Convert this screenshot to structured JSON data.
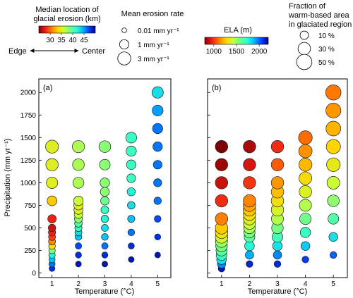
{
  "legends": {
    "median_location": {
      "title_line1": "Median location of",
      "title_line2": "glacial erosion (km)",
      "ticks": [
        "30",
        "35",
        "40",
        "45"
      ],
      "tick_values": [
        30,
        35,
        40,
        45
      ],
      "range": [
        25,
        50
      ],
      "edge_label": "Edge",
      "center_label": "Center"
    },
    "erosion_rate": {
      "title": "Mean erosion rate",
      "items": [
        {
          "label": "0.01 mm yr⁻¹",
          "value": 0.01
        },
        {
          "label": "1 mm yr⁻¹",
          "value": 1
        },
        {
          "label": "3 mm yr⁻¹",
          "value": 3
        }
      ]
    },
    "ela": {
      "title": "ELA (m)",
      "ticks": [
        "1000",
        "1500",
        "2000"
      ],
      "tick_values": [
        1000,
        1500,
        2000
      ],
      "range": [
        800,
        2200
      ]
    },
    "warm_fraction": {
      "title_line1": "Fraction of",
      "title_line2": "warm-based area",
      "title_line3": "in glaciated region",
      "items": [
        {
          "label": "10 %",
          "value": 10
        },
        {
          "label": "30 %",
          "value": 30
        },
        {
          "label": "50 %",
          "value": 50
        }
      ]
    }
  },
  "colormap_stops": [
    "#7f0000",
    "#ee1b16",
    "#ff7a00",
    "#ffd400",
    "#c8ff36",
    "#6dff8f",
    "#2bffd2",
    "#00b8ff",
    "#0040ff",
    "#00008f"
  ],
  "chart_data": [
    {
      "type": "scatter",
      "panel_label": "(a)",
      "xlabel": "Temperature (°C)",
      "ylabel": "Precipitation (mm yr⁻¹)",
      "x_ticks": [
        "1",
        "2",
        "3",
        "4",
        "5"
      ],
      "y_ticks": [
        "0",
        "250",
        "500",
        "750",
        "1000",
        "1250",
        "1500",
        "1750",
        "2000"
      ],
      "xlim": [
        0.5,
        5.5
      ],
      "ylim": [
        -50,
        2150
      ],
      "size_variable": "Mean erosion rate (mm yr⁻¹)",
      "color_variable": "Median location of glacial erosion (km)",
      "points": [
        {
          "x": 1,
          "y": 50,
          "size": 0.1,
          "color": 48
        },
        {
          "x": 1,
          "y": 100,
          "size": 0.15,
          "color": 46
        },
        {
          "x": 1,
          "y": 150,
          "size": 0.15,
          "color": 44
        },
        {
          "x": 1,
          "y": 200,
          "size": 0.2,
          "color": 42
        },
        {
          "x": 1,
          "y": 250,
          "size": 0.2,
          "color": 38
        },
        {
          "x": 1,
          "y": 300,
          "size": 0.25,
          "color": 34
        },
        {
          "x": 1,
          "y": 350,
          "size": 0.3,
          "color": 31
        },
        {
          "x": 1,
          "y": 400,
          "size": 0.3,
          "color": 29
        },
        {
          "x": 1,
          "y": 450,
          "size": 0.35,
          "color": 28
        },
        {
          "x": 1,
          "y": 500,
          "size": 0.4,
          "color": 27
        },
        {
          "x": 1,
          "y": 600,
          "size": 0.7,
          "color": 28
        },
        {
          "x": 1,
          "y": 800,
          "size": 1.2,
          "color": 33
        },
        {
          "x": 1,
          "y": 1000,
          "size": 2.0,
          "color": 35
        },
        {
          "x": 1,
          "y": 1200,
          "size": 2.6,
          "color": 35
        },
        {
          "x": 1,
          "y": 1400,
          "size": 3.0,
          "color": 35
        },
        {
          "x": 2,
          "y": 100,
          "size": 0.1,
          "color": 49
        },
        {
          "x": 2,
          "y": 200,
          "size": 0.15,
          "color": 48
        },
        {
          "x": 2,
          "y": 300,
          "size": 0.2,
          "color": 47
        },
        {
          "x": 2,
          "y": 400,
          "size": 0.25,
          "color": 44
        },
        {
          "x": 2,
          "y": 450,
          "size": 0.3,
          "color": 43
        },
        {
          "x": 2,
          "y": 500,
          "size": 0.35,
          "color": 41
        },
        {
          "x": 2,
          "y": 550,
          "size": 0.45,
          "color": 40
        },
        {
          "x": 2,
          "y": 600,
          "size": 0.55,
          "color": 38
        },
        {
          "x": 2,
          "y": 650,
          "size": 0.7,
          "color": 36
        },
        {
          "x": 2,
          "y": 700,
          "size": 0.9,
          "color": 35
        },
        {
          "x": 2,
          "y": 750,
          "size": 1.0,
          "color": 35
        },
        {
          "x": 2,
          "y": 800,
          "size": 1.1,
          "color": 36
        },
        {
          "x": 2,
          "y": 1000,
          "size": 1.8,
          "color": 37
        },
        {
          "x": 2,
          "y": 1200,
          "size": 2.2,
          "color": 37
        },
        {
          "x": 2,
          "y": 1400,
          "size": 2.5,
          "color": 37
        },
        {
          "x": 3,
          "y": 100,
          "size": 0.1,
          "color": 49
        },
        {
          "x": 3,
          "y": 200,
          "size": 0.15,
          "color": 48
        },
        {
          "x": 3,
          "y": 300,
          "size": 0.2,
          "color": 46
        },
        {
          "x": 3,
          "y": 400,
          "size": 0.25,
          "color": 44
        },
        {
          "x": 3,
          "y": 500,
          "size": 0.3,
          "color": 43
        },
        {
          "x": 3,
          "y": 600,
          "size": 0.4,
          "color": 42
        },
        {
          "x": 3,
          "y": 700,
          "size": 0.5,
          "color": 41
        },
        {
          "x": 3,
          "y": 800,
          "size": 0.7,
          "color": 39
        },
        {
          "x": 3,
          "y": 900,
          "size": 0.9,
          "color": 38
        },
        {
          "x": 3,
          "y": 1000,
          "size": 1.1,
          "color": 38
        },
        {
          "x": 3,
          "y": 1200,
          "size": 1.6,
          "color": 38
        },
        {
          "x": 3,
          "y": 1400,
          "size": 2.2,
          "color": 38
        },
        {
          "x": 4,
          "y": 150,
          "size": 0.1,
          "color": 49
        },
        {
          "x": 4,
          "y": 300,
          "size": 0.15,
          "color": 48
        },
        {
          "x": 4,
          "y": 450,
          "size": 0.25,
          "color": 46
        },
        {
          "x": 4,
          "y": 600,
          "size": 0.35,
          "color": 44
        },
        {
          "x": 4,
          "y": 750,
          "size": 0.45,
          "color": 43
        },
        {
          "x": 4,
          "y": 900,
          "size": 0.6,
          "color": 42
        },
        {
          "x": 4,
          "y": 1050,
          "size": 0.8,
          "color": 41
        },
        {
          "x": 4,
          "y": 1200,
          "size": 1.1,
          "color": 41
        },
        {
          "x": 4,
          "y": 1350,
          "size": 1.4,
          "color": 41
        },
        {
          "x": 4,
          "y": 1500,
          "size": 1.7,
          "color": 41
        },
        {
          "x": 5,
          "y": 200,
          "size": 0.1,
          "color": 49
        },
        {
          "x": 5,
          "y": 400,
          "size": 0.15,
          "color": 48
        },
        {
          "x": 5,
          "y": 600,
          "size": 0.25,
          "color": 47
        },
        {
          "x": 5,
          "y": 800,
          "size": 0.4,
          "color": 46
        },
        {
          "x": 5,
          "y": 1000,
          "size": 0.6,
          "color": 46
        },
        {
          "x": 5,
          "y": 1200,
          "size": 0.8,
          "color": 46
        },
        {
          "x": 5,
          "y": 1400,
          "size": 1.1,
          "color": 46
        },
        {
          "x": 5,
          "y": 1600,
          "size": 1.4,
          "color": 46
        },
        {
          "x": 5,
          "y": 1800,
          "size": 1.7,
          "color": 45
        },
        {
          "x": 5,
          "y": 2000,
          "size": 2.0,
          "color": 43
        }
      ]
    },
    {
      "type": "scatter",
      "panel_label": "(b)",
      "xlabel": "Temperature (°C)",
      "ylabel": "",
      "x_ticks": [
        "1",
        "2",
        "3",
        "4",
        "5"
      ],
      "y_ticks": [],
      "xlim": [
        0.5,
        5.5
      ],
      "ylim": [
        -50,
        2150
      ],
      "size_variable": "Fraction of warm-based area in glaciated region (%)",
      "color_variable": "ELA (m)",
      "points": [
        {
          "x": 1,
          "y": 50,
          "size": 5,
          "color": 2150
        },
        {
          "x": 1,
          "y": 100,
          "size": 10,
          "color": 1950
        },
        {
          "x": 1,
          "y": 150,
          "size": 15,
          "color": 1800
        },
        {
          "x": 1,
          "y": 200,
          "size": 20,
          "color": 1700
        },
        {
          "x": 1,
          "y": 250,
          "size": 22,
          "color": 1620
        },
        {
          "x": 1,
          "y": 300,
          "size": 25,
          "color": 1560
        },
        {
          "x": 1,
          "y": 350,
          "size": 27,
          "color": 1500
        },
        {
          "x": 1,
          "y": 400,
          "size": 30,
          "color": 1400
        },
        {
          "x": 1,
          "y": 450,
          "size": 30,
          "color": 1320
        },
        {
          "x": 1,
          "y": 500,
          "size": 30,
          "color": 1250
        },
        {
          "x": 1,
          "y": 600,
          "size": 30,
          "color": 1120
        },
        {
          "x": 1,
          "y": 800,
          "size": 30,
          "color": 980
        },
        {
          "x": 1,
          "y": 1000,
          "size": 30,
          "color": 900
        },
        {
          "x": 1,
          "y": 1200,
          "size": 30,
          "color": 840
        },
        {
          "x": 1,
          "y": 1400,
          "size": 30,
          "color": 800
        },
        {
          "x": 2,
          "y": 100,
          "size": 5,
          "color": 2100
        },
        {
          "x": 2,
          "y": 200,
          "size": 10,
          "color": 1900
        },
        {
          "x": 2,
          "y": 300,
          "size": 15,
          "color": 1750
        },
        {
          "x": 2,
          "y": 400,
          "size": 20,
          "color": 1620
        },
        {
          "x": 2,
          "y": 450,
          "size": 22,
          "color": 1560
        },
        {
          "x": 2,
          "y": 500,
          "size": 25,
          "color": 1480
        },
        {
          "x": 2,
          "y": 550,
          "size": 27,
          "color": 1420
        },
        {
          "x": 2,
          "y": 600,
          "size": 28,
          "color": 1360
        },
        {
          "x": 2,
          "y": 650,
          "size": 29,
          "color": 1300
        },
        {
          "x": 2,
          "y": 700,
          "size": 30,
          "color": 1240
        },
        {
          "x": 2,
          "y": 750,
          "size": 30,
          "color": 1180
        },
        {
          "x": 2,
          "y": 800,
          "size": 30,
          "color": 1130
        },
        {
          "x": 2,
          "y": 1000,
          "size": 30,
          "color": 1000
        },
        {
          "x": 2,
          "y": 1200,
          "size": 30,
          "color": 920
        },
        {
          "x": 2,
          "y": 1400,
          "size": 30,
          "color": 860
        },
        {
          "x": 3,
          "y": 100,
          "size": 5,
          "color": 2100
        },
        {
          "x": 3,
          "y": 200,
          "size": 10,
          "color": 1950
        },
        {
          "x": 3,
          "y": 300,
          "size": 15,
          "color": 1800
        },
        {
          "x": 3,
          "y": 400,
          "size": 20,
          "color": 1680
        },
        {
          "x": 3,
          "y": 500,
          "size": 25,
          "color": 1560
        },
        {
          "x": 3,
          "y": 600,
          "size": 28,
          "color": 1460
        },
        {
          "x": 3,
          "y": 700,
          "size": 30,
          "color": 1380
        },
        {
          "x": 3,
          "y": 800,
          "size": 30,
          "color": 1300
        },
        {
          "x": 3,
          "y": 900,
          "size": 30,
          "color": 1230
        },
        {
          "x": 3,
          "y": 1000,
          "size": 30,
          "color": 1160
        },
        {
          "x": 3,
          "y": 1200,
          "size": 30,
          "color": 1060
        },
        {
          "x": 3,
          "y": 1400,
          "size": 30,
          "color": 980
        },
        {
          "x": 4,
          "y": 150,
          "size": 5,
          "color": 2050
        },
        {
          "x": 4,
          "y": 300,
          "size": 12,
          "color": 1850
        },
        {
          "x": 4,
          "y": 450,
          "size": 18,
          "color": 1700
        },
        {
          "x": 4,
          "y": 600,
          "size": 24,
          "color": 1570
        },
        {
          "x": 4,
          "y": 750,
          "size": 28,
          "color": 1460
        },
        {
          "x": 4,
          "y": 900,
          "size": 30,
          "color": 1370
        },
        {
          "x": 4,
          "y": 1050,
          "size": 32,
          "color": 1290
        },
        {
          "x": 4,
          "y": 1200,
          "size": 34,
          "color": 1220
        },
        {
          "x": 4,
          "y": 1350,
          "size": 36,
          "color": 1150
        },
        {
          "x": 4,
          "y": 1500,
          "size": 38,
          "color": 1090
        },
        {
          "x": 5,
          "y": 200,
          "size": 5,
          "color": 2000
        },
        {
          "x": 5,
          "y": 400,
          "size": 12,
          "color": 1800
        },
        {
          "x": 5,
          "y": 600,
          "size": 20,
          "color": 1640
        },
        {
          "x": 5,
          "y": 800,
          "size": 26,
          "color": 1520
        },
        {
          "x": 5,
          "y": 1000,
          "size": 32,
          "color": 1420
        },
        {
          "x": 5,
          "y": 1200,
          "size": 38,
          "color": 1340
        },
        {
          "x": 5,
          "y": 1400,
          "size": 42,
          "color": 1270
        },
        {
          "x": 5,
          "y": 1600,
          "size": 46,
          "color": 1210
        },
        {
          "x": 5,
          "y": 1800,
          "size": 48,
          "color": 1160
        },
        {
          "x": 5,
          "y": 2000,
          "size": 50,
          "color": 1110
        }
      ]
    }
  ]
}
